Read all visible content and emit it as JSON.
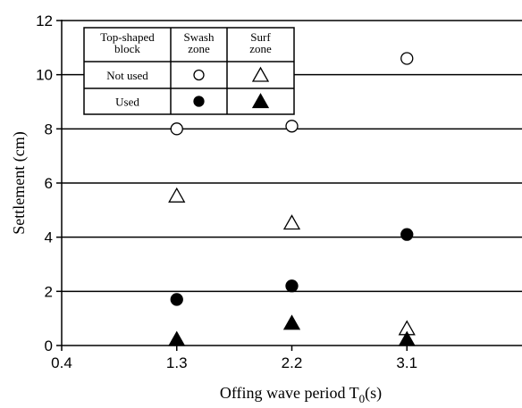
{
  "chart_data": {
    "type": "scatter",
    "xlabel": "Offing wave period T",
    "xlabel_subscript": "0",
    "xlabel_suffix": "(s)",
    "ylabel": "Settlement (cm)",
    "xlim": [
      0.4,
      4.0
    ],
    "ylim": [
      0,
      12
    ],
    "xticks": [
      0.4,
      1.3,
      2.2,
      3.1
    ],
    "xtick_labels": [
      "0.4",
      "1.3",
      "2.2",
      "3.1"
    ],
    "yticks": [
      0,
      2,
      4,
      6,
      8,
      10,
      12
    ],
    "ytick_labels": [
      "0",
      "2",
      "4",
      "6",
      "8",
      "10",
      "12"
    ],
    "grid": "horizontal",
    "legend_placement": "top-left",
    "series": [
      {
        "key": "swash_not_used",
        "marker": "circle-open",
        "x": [
          1.3,
          2.2,
          3.1
        ],
        "values": [
          8.0,
          8.1,
          10.6
        ]
      },
      {
        "key": "surf_not_used",
        "marker": "triangle-open",
        "x": [
          1.3,
          2.2,
          3.1
        ],
        "values": [
          5.5,
          4.5,
          0.6
        ]
      },
      {
        "key": "swash_used",
        "marker": "circle-filled",
        "x": [
          1.3,
          2.2,
          3.1
        ],
        "values": [
          1.7,
          2.2,
          4.1
        ]
      },
      {
        "key": "surf_used",
        "marker": "triangle-filled",
        "x": [
          1.3,
          2.2,
          3.1
        ],
        "values": [
          0.2,
          0.8,
          0.2
        ]
      }
    ],
    "legend_table": {
      "header": [
        "Top-shaped block",
        "Swash zone",
        "Surf zone"
      ],
      "rows": [
        {
          "label": "Not used",
          "swash": "circle-open",
          "surf": "triangle-open"
        },
        {
          "label": "Used",
          "swash": "circle-filled",
          "surf": "triangle-filled"
        }
      ]
    }
  }
}
